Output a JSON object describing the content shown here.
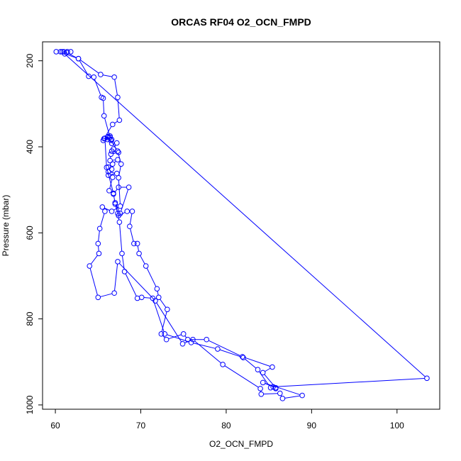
{
  "chart_data": {
    "type": "line",
    "title": "ORCAS RF04 O2_OCN_FMPD",
    "xlabel": "O2_OCN_FMPD",
    "ylabel": "Pressure (mbar)",
    "xlim": [
      58.5,
      105.0
    ],
    "ylim": [
      1010,
      156
    ],
    "y_reversed": true,
    "grid": false,
    "x_ticks": [
      60,
      70,
      80,
      90,
      100
    ],
    "y_ticks": [
      200,
      400,
      600,
      800,
      1000
    ],
    "series": [
      {
        "color": "#0000ff",
        "marker": "open-circle",
        "points": [
          [
            60.1,
            179
          ],
          [
            60.6,
            179
          ],
          [
            61.0,
            179
          ],
          [
            61.4,
            179
          ],
          [
            61.8,
            179
          ],
          [
            61.3,
            181
          ],
          [
            62.7,
            195
          ],
          [
            65.3,
            232
          ],
          [
            66.9,
            238
          ],
          [
            67.3,
            285
          ],
          [
            67.5,
            338
          ],
          [
            66.7,
            348
          ],
          [
            65.7,
            381
          ],
          [
            65.6,
            385
          ],
          [
            66.1,
            383
          ],
          [
            66.6,
            383
          ],
          [
            66.4,
            378
          ],
          [
            66.2,
            376
          ],
          [
            66.6,
            392
          ],
          [
            67.2,
            391
          ],
          [
            66.8,
            405
          ],
          [
            66.6,
            410
          ],
          [
            67.4,
            413
          ],
          [
            66.5,
            417
          ],
          [
            66.4,
            432
          ],
          [
            67.3,
            430
          ],
          [
            66.7,
            440
          ],
          [
            66.2,
            447
          ],
          [
            66.6,
            452
          ],
          [
            66.2,
            458
          ],
          [
            67.2,
            462
          ],
          [
            66.2,
            466
          ],
          [
            66.7,
            471
          ],
          [
            66.3,
            502
          ],
          [
            66.8,
            510
          ],
          [
            67.4,
            494
          ],
          [
            68.6,
            494
          ],
          [
            67.6,
            555
          ],
          [
            67.0,
            530
          ],
          [
            67.4,
            560
          ],
          [
            68.4,
            550
          ],
          [
            69.0,
            550
          ],
          [
            68.7,
            585
          ],
          [
            69.2,
            625
          ],
          [
            69.6,
            625
          ],
          [
            69.8,
            648
          ],
          [
            70.6,
            677
          ],
          [
            71.9,
            730
          ],
          [
            72.1,
            750
          ],
          [
            73.1,
            778
          ],
          [
            72.4,
            835
          ],
          [
            73.0,
            848
          ],
          [
            75.0,
            835
          ],
          [
            75.5,
            848
          ],
          [
            77.7,
            848
          ],
          [
            81.9,
            888
          ],
          [
            85.4,
            912
          ],
          [
            84.3,
            925
          ],
          [
            85.8,
            960
          ],
          [
            84.3,
            948
          ],
          [
            88.9,
            978
          ],
          [
            86.6,
            985
          ],
          [
            86.3,
            973
          ],
          [
            84.1,
            975
          ],
          [
            84.0,
            962
          ],
          [
            79.6,
            906
          ],
          [
            76.1,
            848
          ],
          [
            74.9,
            858
          ],
          [
            71.7,
            758
          ],
          [
            67.3,
            667
          ],
          [
            66.9,
            740
          ],
          [
            65.0,
            750
          ],
          [
            64.0,
            677
          ],
          [
            65.1,
            648
          ],
          [
            65.0,
            625
          ],
          [
            65.2,
            590
          ],
          [
            65.8,
            550
          ],
          [
            65.5,
            540
          ],
          [
            66.6,
            550
          ],
          [
            67.6,
            538
          ],
          [
            67.4,
            472
          ],
          [
            67.7,
            440
          ],
          [
            67.3,
            410
          ],
          [
            66.5,
            385
          ],
          [
            65.7,
            328
          ],
          [
            65.6,
            287
          ],
          [
            65.4,
            285
          ],
          [
            64.5,
            238
          ],
          [
            63.9,
            236
          ],
          [
            62.7,
            195
          ],
          [
            61.1,
            184
          ],
          [
            60.8,
            179
          ],
          [
            103.5,
            938
          ],
          [
            85.5,
            958
          ],
          [
            85.8,
            962
          ],
          [
            85.2,
            960
          ],
          [
            83.7,
            918
          ],
          [
            82.0,
            890
          ],
          [
            79.0,
            870
          ],
          [
            75.9,
            855
          ],
          [
            72.8,
            835
          ],
          [
            71.4,
            752
          ],
          [
            70.1,
            750
          ],
          [
            69.6,
            752
          ],
          [
            68.1,
            690
          ],
          [
            67.8,
            648
          ],
          [
            67.5,
            575
          ],
          [
            67.3,
            555
          ],
          [
            67.0,
            533
          ],
          [
            66.8,
            508
          ],
          [
            66.0,
            448
          ],
          [
            65.8,
            380
          ],
          [
            66.1,
            378
          ],
          [
            66.4,
            375
          ]
        ]
      }
    ]
  }
}
